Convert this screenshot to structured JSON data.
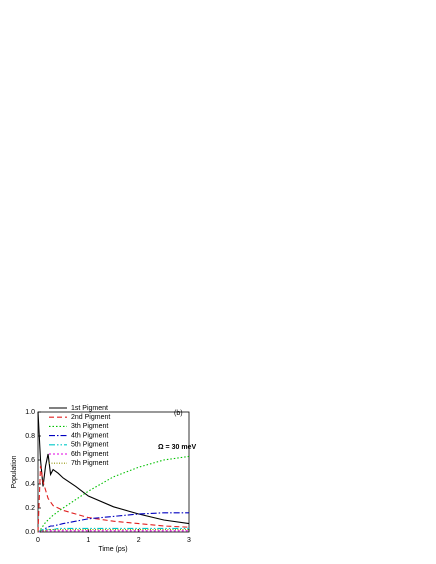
{
  "chart_data": {
    "type": "line",
    "x_label": "Time (ps)",
    "y_label": "Population",
    "annotations": [
      "(b)",
      "Ω = 30 meV"
    ],
    "x": [
      0,
      0.05,
      0.1,
      0.15,
      0.2,
      0.25,
      0.3,
      0.4,
      0.5,
      0.75,
      1,
      1.5,
      2,
      2.5,
      3
    ],
    "series": [
      {
        "name": "1st Pigment",
        "color": "#000000",
        "dash": "none",
        "values": [
          1.0,
          0.6,
          0.38,
          0.55,
          0.65,
          0.48,
          0.52,
          0.49,
          0.45,
          0.38,
          0.3,
          0.21,
          0.15,
          0.1,
          0.07
        ]
      },
      {
        "name": "2nd Pigment",
        "color": "#e02020",
        "dash": "5,3",
        "values": [
          0,
          0.55,
          0.42,
          0.35,
          0.28,
          0.25,
          0.22,
          0.2,
          0.18,
          0.15,
          0.12,
          0.09,
          0.07,
          0.05,
          0.04
        ]
      },
      {
        "name": "3th Pigment",
        "color": "#00c000",
        "dash": "1.5,2",
        "values": [
          0,
          0.02,
          0.05,
          0.08,
          0.1,
          0.12,
          0.14,
          0.17,
          0.2,
          0.27,
          0.34,
          0.46,
          0.54,
          0.6,
          0.63
        ]
      },
      {
        "name": "4th Pigment",
        "color": "#0000c0",
        "dash": "6,2,1.5,2",
        "values": [
          0,
          0.01,
          0.02,
          0.03,
          0.04,
          0.05,
          0.05,
          0.06,
          0.07,
          0.09,
          0.11,
          0.13,
          0.15,
          0.16,
          0.16
        ]
      },
      {
        "name": "5th Pigment",
        "color": "#00c8c8",
        "dash": "6,2,1.5,2,1.5,2",
        "values": [
          0,
          0.01,
          0.02,
          0.02,
          0.02,
          0.02,
          0.02,
          0.03,
          0.03,
          0.03,
          0.03,
          0.03,
          0.03,
          0.03,
          0.03
        ]
      },
      {
        "name": "6th Pigment",
        "color": "#e000e0",
        "dash": "2,2",
        "values": [
          0,
          0,
          0.01,
          0.01,
          0.01,
          0.01,
          0.01,
          0.01,
          0.01,
          0.01,
          0.01,
          0.01,
          0.01,
          0.01,
          0.01
        ]
      },
      {
        "name": "7th Pigment",
        "color": "#909000",
        "dash": "1,1.5",
        "values": [
          0,
          0.01,
          0.01,
          0.01,
          0.02,
          0.02,
          0.02,
          0.02,
          0.02,
          0.02,
          0.02,
          0.02,
          0.02,
          0.02,
          0.02
        ]
      }
    ],
    "xlim": [
      0,
      3
    ],
    "xticks": [
      0,
      1,
      2,
      3
    ],
    "ylim": [
      0,
      1
    ],
    "yticks": [
      {
        "value": 0,
        "label": "0.0"
      },
      {
        "value": 0.2,
        "label": "0.2"
      },
      {
        "value": 0.4,
        "label": "0.4"
      },
      {
        "value": 0.6,
        "label": "0.6"
      },
      {
        "value": 0.8,
        "label": "0.8"
      },
      {
        "value": 1,
        "label": "1.0"
      }
    ],
    "legend": "upper left"
  }
}
